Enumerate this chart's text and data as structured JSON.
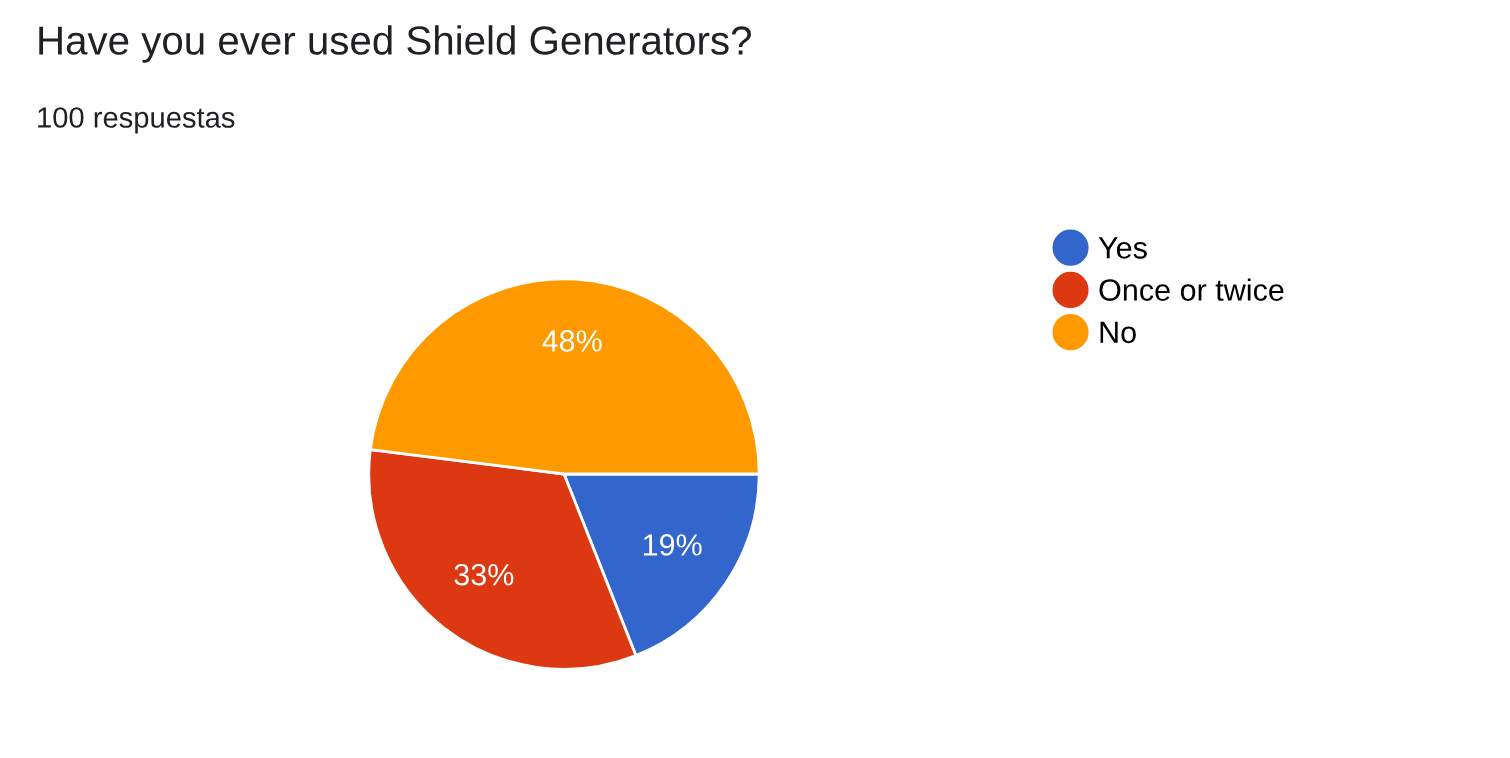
{
  "chart_data": {
    "type": "pie",
    "title": "Have you ever used Shield Generators?",
    "subtitle": "100 respuestas",
    "categories": [
      "Yes",
      "Once or twice",
      "No"
    ],
    "values": [
      19,
      33,
      48
    ],
    "colors": [
      "#3366cc",
      "#dc3912",
      "#ff9900"
    ],
    "value_labels": [
      "19%",
      "33%",
      "48%"
    ],
    "legend": "right"
  }
}
